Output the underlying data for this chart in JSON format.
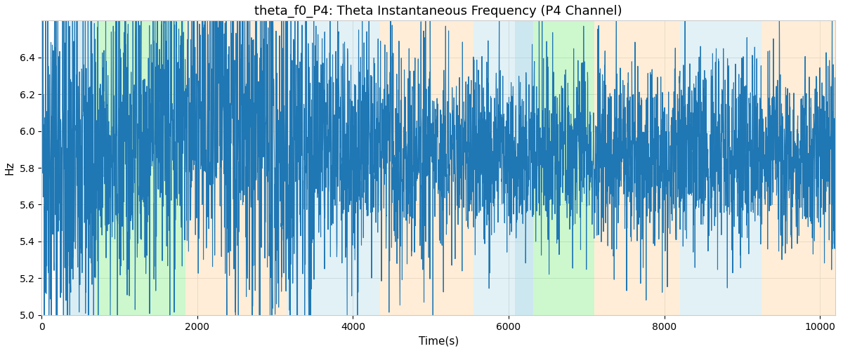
{
  "title": "theta_f0_P4: Theta Instantaneous Frequency (P4 Channel)",
  "xlabel": "Time(s)",
  "ylabel": "Hz",
  "xlim": [
    0,
    10200
  ],
  "ylim": [
    5.0,
    6.6
  ],
  "line_color": "#1f77b4",
  "line_width": 0.8,
  "background_color": "#ffffff",
  "figsize": [
    12.0,
    5.0
  ],
  "dpi": 100,
  "title_fontsize": 13,
  "label_fontsize": 11,
  "seed": 42,
  "n_points": 4000,
  "x_start": 0,
  "x_end": 10200,
  "regions": [
    {
      "start": 290,
      "end": 690,
      "color": "#add8e6",
      "alpha": 0.45
    },
    {
      "start": 690,
      "end": 1850,
      "color": "#90ee90",
      "alpha": 0.45
    },
    {
      "start": 1850,
      "end": 3150,
      "color": "#ffd8a8",
      "alpha": 0.45
    },
    {
      "start": 3150,
      "end": 4350,
      "color": "#add8e6",
      "alpha": 0.35
    },
    {
      "start": 4350,
      "end": 5550,
      "color": "#ffd8a8",
      "alpha": 0.45
    },
    {
      "start": 5550,
      "end": 6080,
      "color": "#add8e6",
      "alpha": 0.35
    },
    {
      "start": 6080,
      "end": 6320,
      "color": "#add8e6",
      "alpha": 0.6
    },
    {
      "start": 6320,
      "end": 7100,
      "color": "#90ee90",
      "alpha": 0.45
    },
    {
      "start": 7100,
      "end": 8200,
      "color": "#ffd8a8",
      "alpha": 0.45
    },
    {
      "start": 8200,
      "end": 9250,
      "color": "#add8e6",
      "alpha": 0.35
    },
    {
      "start": 9250,
      "end": 10200,
      "color": "#ffd8a8",
      "alpha": 0.45
    }
  ],
  "yticks": [
    5.0,
    5.2,
    5.4,
    5.6,
    5.8,
    6.0,
    6.2,
    6.4
  ],
  "xticks": [
    0,
    2000,
    4000,
    6000,
    8000,
    10000
  ]
}
